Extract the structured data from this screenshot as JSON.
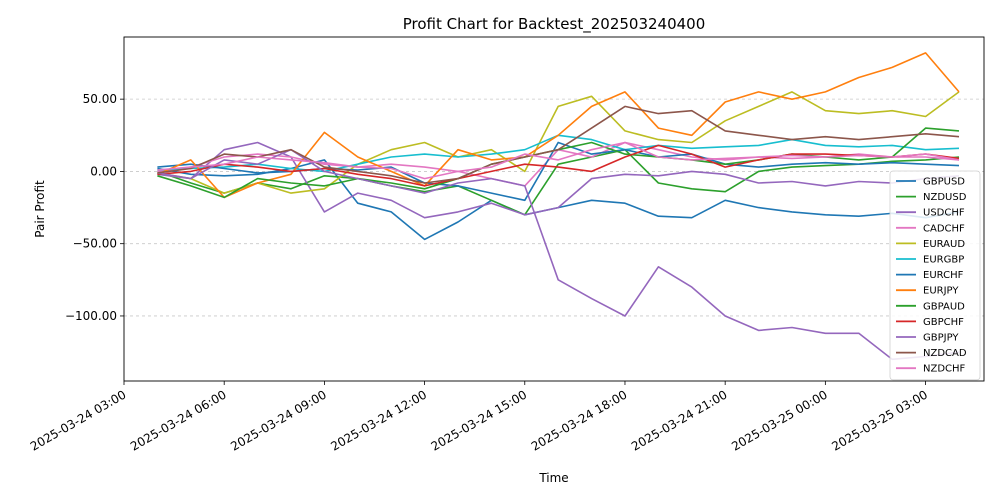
{
  "chart_data": {
    "type": "line",
    "title": "Profit Chart for Backtest_202503240400",
    "xlabel": "Time",
    "ylabel": "Pair Profit",
    "xlim": [
      "2025-03-24 03:00",
      "2025-03-25 04:45"
    ],
    "ylim": [
      -145,
      93
    ],
    "x_ticks": [
      "2025-03-24 03:00",
      "2025-03-24 06:00",
      "2025-03-24 09:00",
      "2025-03-24 12:00",
      "2025-03-24 15:00",
      "2025-03-24 18:00",
      "2025-03-24 21:00",
      "2025-03-25 00:00",
      "2025-03-25 03:00"
    ],
    "y_ticks": [
      -100,
      -50,
      0,
      50
    ],
    "y_tick_labels": [
      "−100.00",
      "−50.00",
      "0.00",
      "50.00"
    ],
    "grid": "horizontal dashed",
    "legend_position": "lower right",
    "x": [
      "2025-03-24 04:00",
      "2025-03-24 05:00",
      "2025-03-24 06:00",
      "2025-03-24 07:00",
      "2025-03-24 08:00",
      "2025-03-24 09:00",
      "2025-03-24 10:00",
      "2025-03-24 11:00",
      "2025-03-24 12:00",
      "2025-03-24 13:00",
      "2025-03-24 14:00",
      "2025-03-24 15:00",
      "2025-03-24 16:00",
      "2025-03-24 17:00",
      "2025-03-24 18:00",
      "2025-03-24 19:00",
      "2025-03-24 20:00",
      "2025-03-24 21:00",
      "2025-03-24 22:00",
      "2025-03-24 23:00",
      "2025-03-25 00:00",
      "2025-03-25 01:00",
      "2025-03-25 02:00",
      "2025-03-25 03:00",
      "2025-03-25 04:00"
    ],
    "series": [
      {
        "name": "GBPUSD",
        "color": "#1f77b4",
        "values": [
          2,
          -2,
          -3,
          -2,
          2,
          8,
          -22,
          -28,
          -47,
          -35,
          -20,
          -30,
          -25,
          -20,
          -22,
          -31,
          -32,
          -20,
          -25,
          -28,
          -30,
          -31,
          -29,
          -32,
          -28
        ]
      },
      {
        "name": "NZDUSD",
        "color": "#2ca02c",
        "values": [
          0,
          -8,
          -15,
          -8,
          -12,
          -3,
          -5,
          -10,
          -14,
          -10,
          -20,
          -30,
          5,
          10,
          15,
          -8,
          -12,
          -14,
          0,
          3,
          4,
          5,
          7,
          8,
          10
        ]
      },
      {
        "name": "USDCHF",
        "color": "#9467bd",
        "values": [
          -2,
          -5,
          15,
          20,
          10,
          -28,
          -15,
          -20,
          -32,
          -28,
          -22,
          -30,
          -25,
          -5,
          -2,
          -3,
          0,
          -2,
          -8,
          -7,
          -10,
          -7,
          -8,
          -5,
          -3
        ]
      },
      {
        "name": "CADCHF",
        "color": "#e377c2",
        "values": [
          0,
          3,
          10,
          12,
          10,
          5,
          3,
          5,
          3,
          0,
          -5,
          -10,
          15,
          10,
          20,
          15,
          10,
          8,
          10,
          9,
          10,
          12,
          10,
          10,
          8
        ]
      },
      {
        "name": "EURAUD",
        "color": "#bcbd22",
        "values": [
          -1,
          -5,
          -15,
          -8,
          -15,
          -12,
          5,
          15,
          20,
          10,
          15,
          0,
          45,
          52,
          28,
          22,
          20,
          35,
          45,
          55,
          42,
          40,
          42,
          38,
          55
        ]
      },
      {
        "name": "EURGBP",
        "color": "#17becf",
        "values": [
          1,
          2,
          3,
          5,
          2,
          0,
          5,
          10,
          12,
          10,
          12,
          15,
          25,
          22,
          15,
          18,
          16,
          17,
          18,
          22,
          18,
          17,
          18,
          15,
          16
        ]
      },
      {
        "name": "EURCHF",
        "color": "#1f77b4",
        "values": [
          3,
          5,
          2,
          -1,
          0,
          2,
          1,
          3,
          -8,
          -10,
          -15,
          -20,
          20,
          12,
          15,
          10,
          12,
          5,
          3,
          5,
          6,
          5,
          6,
          5,
          4
        ]
      },
      {
        "name": "EURJPY",
        "color": "#ff7f0e",
        "values": [
          -2,
          8,
          -18,
          -8,
          -2,
          27,
          10,
          0,
          -10,
          15,
          8,
          10,
          25,
          45,
          55,
          30,
          25,
          48,
          55,
          50,
          55,
          65,
          72,
          82,
          55
        ]
      },
      {
        "name": "GBPAUD",
        "color": "#2ca02c",
        "values": [
          -3,
          -10,
          -18,
          -5,
          -8,
          -10,
          -5,
          -8,
          -12,
          -5,
          5,
          10,
          15,
          20,
          12,
          10,
          8,
          5,
          8,
          12,
          10,
          8,
          10,
          30,
          28
        ]
      },
      {
        "name": "GBPCHF",
        "color": "#d62728",
        "values": [
          -2,
          0,
          5,
          3,
          0,
          2,
          -2,
          -5,
          -10,
          -5,
          0,
          5,
          3,
          0,
          10,
          18,
          12,
          3,
          8,
          12,
          12,
          11,
          10,
          12,
          9
        ]
      },
      {
        "name": "GBPJPY",
        "color": "#9467bd",
        "values": [
          -1,
          -5,
          8,
          5,
          15,
          0,
          -5,
          -10,
          -15,
          -8,
          -5,
          -10,
          -75,
          -88,
          -100,
          -66,
          -80,
          -100,
          -110,
          -108,
          -112,
          -112,
          -130,
          -128,
          -125
        ]
      },
      {
        "name": "NZDCAD",
        "color": "#8c564b",
        "values": [
          -1,
          2,
          12,
          10,
          15,
          3,
          0,
          -3,
          -8,
          -5,
          5,
          10,
          15,
          30,
          45,
          40,
          42,
          28,
          25,
          22,
          24,
          22,
          24,
          26,
          24
        ]
      },
      {
        "name": "NZDCHF",
        "color": "#e377c2",
        "values": [
          1,
          3,
          5,
          10,
          8,
          6,
          3,
          2,
          -5,
          0,
          3,
          12,
          8,
          15,
          20,
          10,
          8,
          9,
          10,
          11,
          10,
          11,
          10,
          12,
          8
        ]
      }
    ]
  }
}
